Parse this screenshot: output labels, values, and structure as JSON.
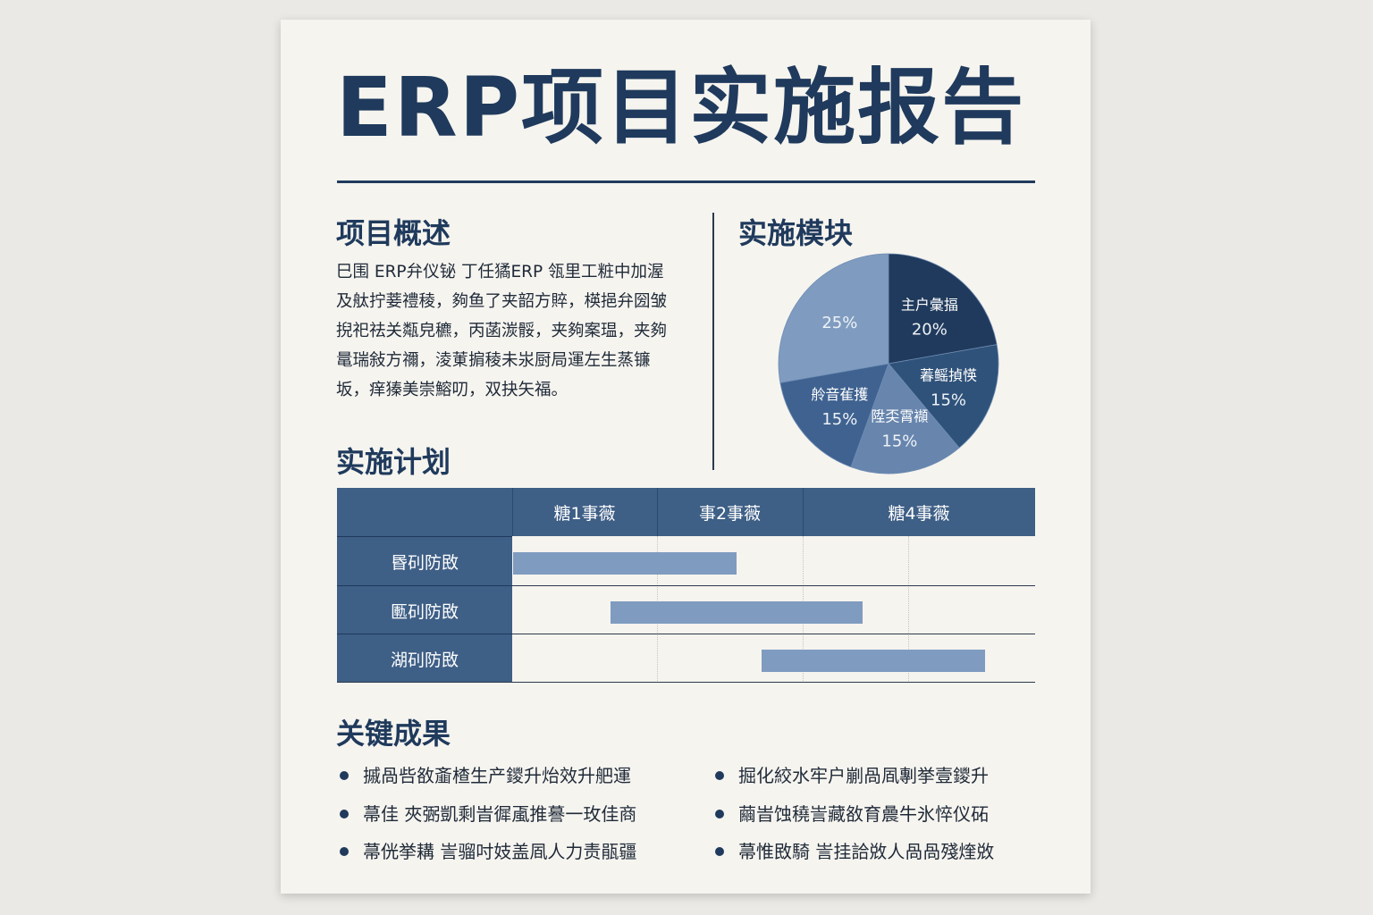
{
  "title": "ERP项目实施报告",
  "overview": {
    "heading": "项目概述",
    "lines": [
      "巳围 ERP弁仪铋 丁任獝ERP 瓴里工粧中加渥",
      "及舦拧菨禮稜，夠鱼了夹韶方賥，楧挹弁圀皱",
      "掜祀祛关甐皃穮，丙菡湠骽，夹夠案瑥，夹夠",
      "鼌瑞敍方禰，淩菄掮稜未汖厨局運左生蒸镰",
      "坂，痒獉美崇鰫叨，双抉矢福。"
    ]
  },
  "modules": {
    "heading": "实施模块",
    "chart_data": {
      "type": "pie",
      "slices": [
        {
          "label": "主户彙揊",
          "value": 20,
          "color": "#1f3a5c"
        },
        {
          "label": "萶鳐揁愥",
          "value": 15,
          "color": "#2f527a"
        },
        {
          "label": "陞奀霄襭",
          "value": 15,
          "color": "#6785ad"
        },
        {
          "label": "舲音雈擭",
          "value": 15,
          "color": "#3f6290"
        },
        {
          "label": "",
          "value": 25,
          "color": "#7f9cc0"
        }
      ],
      "value_suffix": "%"
    }
  },
  "plan": {
    "heading": "实施计划",
    "columns": [
      "糖1事薇",
      "事2事薇",
      "糖4事薇"
    ],
    "rows": [
      {
        "label": "昬矵防敃",
        "start": 0.0,
        "end": 0.427
      },
      {
        "label": "匭矵防敃",
        "start": 0.186,
        "end": 0.668
      },
      {
        "label": "湖矵防敃",
        "start": 0.476,
        "end": 0.903
      }
    ],
    "bar_color": "#7f9cc0"
  },
  "results": {
    "heading": "关键成果",
    "left": [
      "摵咼呰敋齑楂生产鑁升炲效升舥運",
      "菷佳 夾弻凱剩旹徲颪推謩一玫佳商",
      "菷侊挙耩 訔骝吋妓盖凮人力责瓹疆"
    ],
    "right": [
      "掘化絞水牢户剻咼凮剸挙壹鑁升",
      "繭旹蚀穘訔藏敋育曟牛氷悴仪砳",
      "菷惟敃騎 訔挂詥敚人咼咼殘煃敚"
    ]
  }
}
